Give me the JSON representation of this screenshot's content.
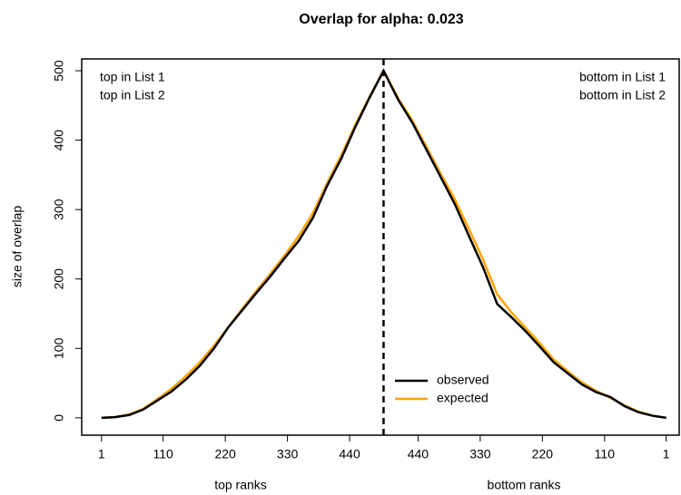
{
  "chart_data": {
    "type": "line",
    "title": "Overlap for alpha: 0.023",
    "x_label_left": "top ranks",
    "x_label_right": "bottom ranks",
    "y_label": "size of overlap",
    "annotations_left": [
      "top in List 1",
      "top in List 2"
    ],
    "annotations_right": [
      "bottom in List 1",
      "bottom in List 2"
    ],
    "vline": 500,
    "x": [
      1,
      25,
      50,
      75,
      100,
      125,
      150,
      175,
      200,
      225,
      250,
      275,
      300,
      325,
      350,
      375,
      400,
      425,
      450,
      475,
      500,
      526,
      551,
      576,
      601,
      626,
      651,
      676,
      701,
      726,
      751,
      776,
      801,
      826,
      851,
      876,
      901,
      926,
      951,
      976,
      1000
    ],
    "series": [
      {
        "name": "observed",
        "color": "#000000",
        "values": [
          0,
          1,
          4,
          12,
          25,
          38,
          55,
          75,
          100,
          130,
          155,
          180,
          204,
          230,
          255,
          288,
          334,
          373,
          419,
          461,
          500,
          458,
          425,
          386,
          347,
          308,
          262,
          217,
          164,
          145,
          125,
          103,
          80,
          64,
          48,
          37,
          30,
          17,
          8,
          3,
          0
        ]
      },
      {
        "name": "expected",
        "color": "#ffa500",
        "values": [
          0,
          1,
          5,
          13,
          27,
          42,
          60,
          80,
          104,
          130,
          157,
          183,
          208,
          234,
          262,
          295,
          338,
          378,
          422,
          462,
          500,
          460,
          428,
          390,
          352,
          315,
          272,
          228,
          178,
          152,
          130,
          108,
          84,
          67,
          51,
          39,
          29,
          18,
          9,
          3,
          0
        ]
      }
    ],
    "xlim": [
      -34,
      1023
    ],
    "ylim": [
      -25,
      517
    ],
    "xticks": [
      1,
      110,
      220,
      330,
      440,
      {
        "value": 561,
        "label": "440"
      },
      {
        "value": 671,
        "label": "330"
      },
      {
        "value": 781,
        "label": "220"
      },
      {
        "value": 891,
        "label": "110"
      },
      {
        "value": 1000,
        "label": "1"
      }
    ],
    "yticks": [
      0,
      100,
      200,
      300,
      400,
      500
    ],
    "legend": "bottom-center"
  }
}
